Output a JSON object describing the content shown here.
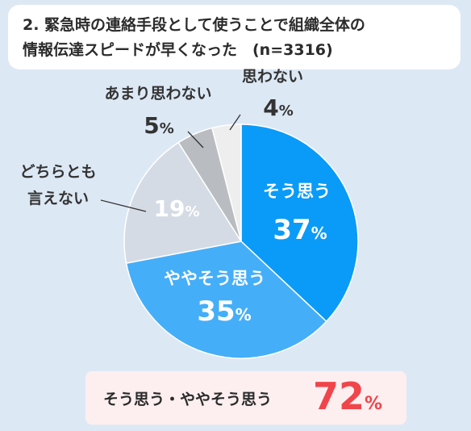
{
  "title": {
    "line1": "2. 緊急時の連絡手段として使うことで組織全体の",
    "line2": "情報伝達スピードが早くなった　(n=3316)"
  },
  "summary": {
    "label": "そう思う・ややそう思う",
    "value": "72",
    "unit": "%"
  },
  "chart_data": {
    "type": "pie",
    "start_angle_deg": 0,
    "direction": "clockwise",
    "unit": "%",
    "slices": [
      {
        "label": "そう思う",
        "value": 37,
        "color": "#0a9bf8",
        "label_inside": true,
        "text_color": "#ffffff"
      },
      {
        "label": "ややそう思う",
        "value": 35,
        "color": "#45aef8",
        "label_inside": true,
        "text_color": "#ffffff"
      },
      {
        "label": "どちらとも言えない",
        "lines": [
          "どちらとも",
          "言えない"
        ],
        "value": 19,
        "color": "#d5dbe4",
        "label_inside": false,
        "text_color": "#ffffff"
      },
      {
        "label": "あまり思わない",
        "value": 5,
        "color": "#b9bcc0",
        "label_inside": false,
        "text_color": "#333333"
      },
      {
        "label": "思わない",
        "value": 4,
        "color": "#eeeeee",
        "label_inside": false,
        "text_color": "#333333"
      }
    ]
  }
}
